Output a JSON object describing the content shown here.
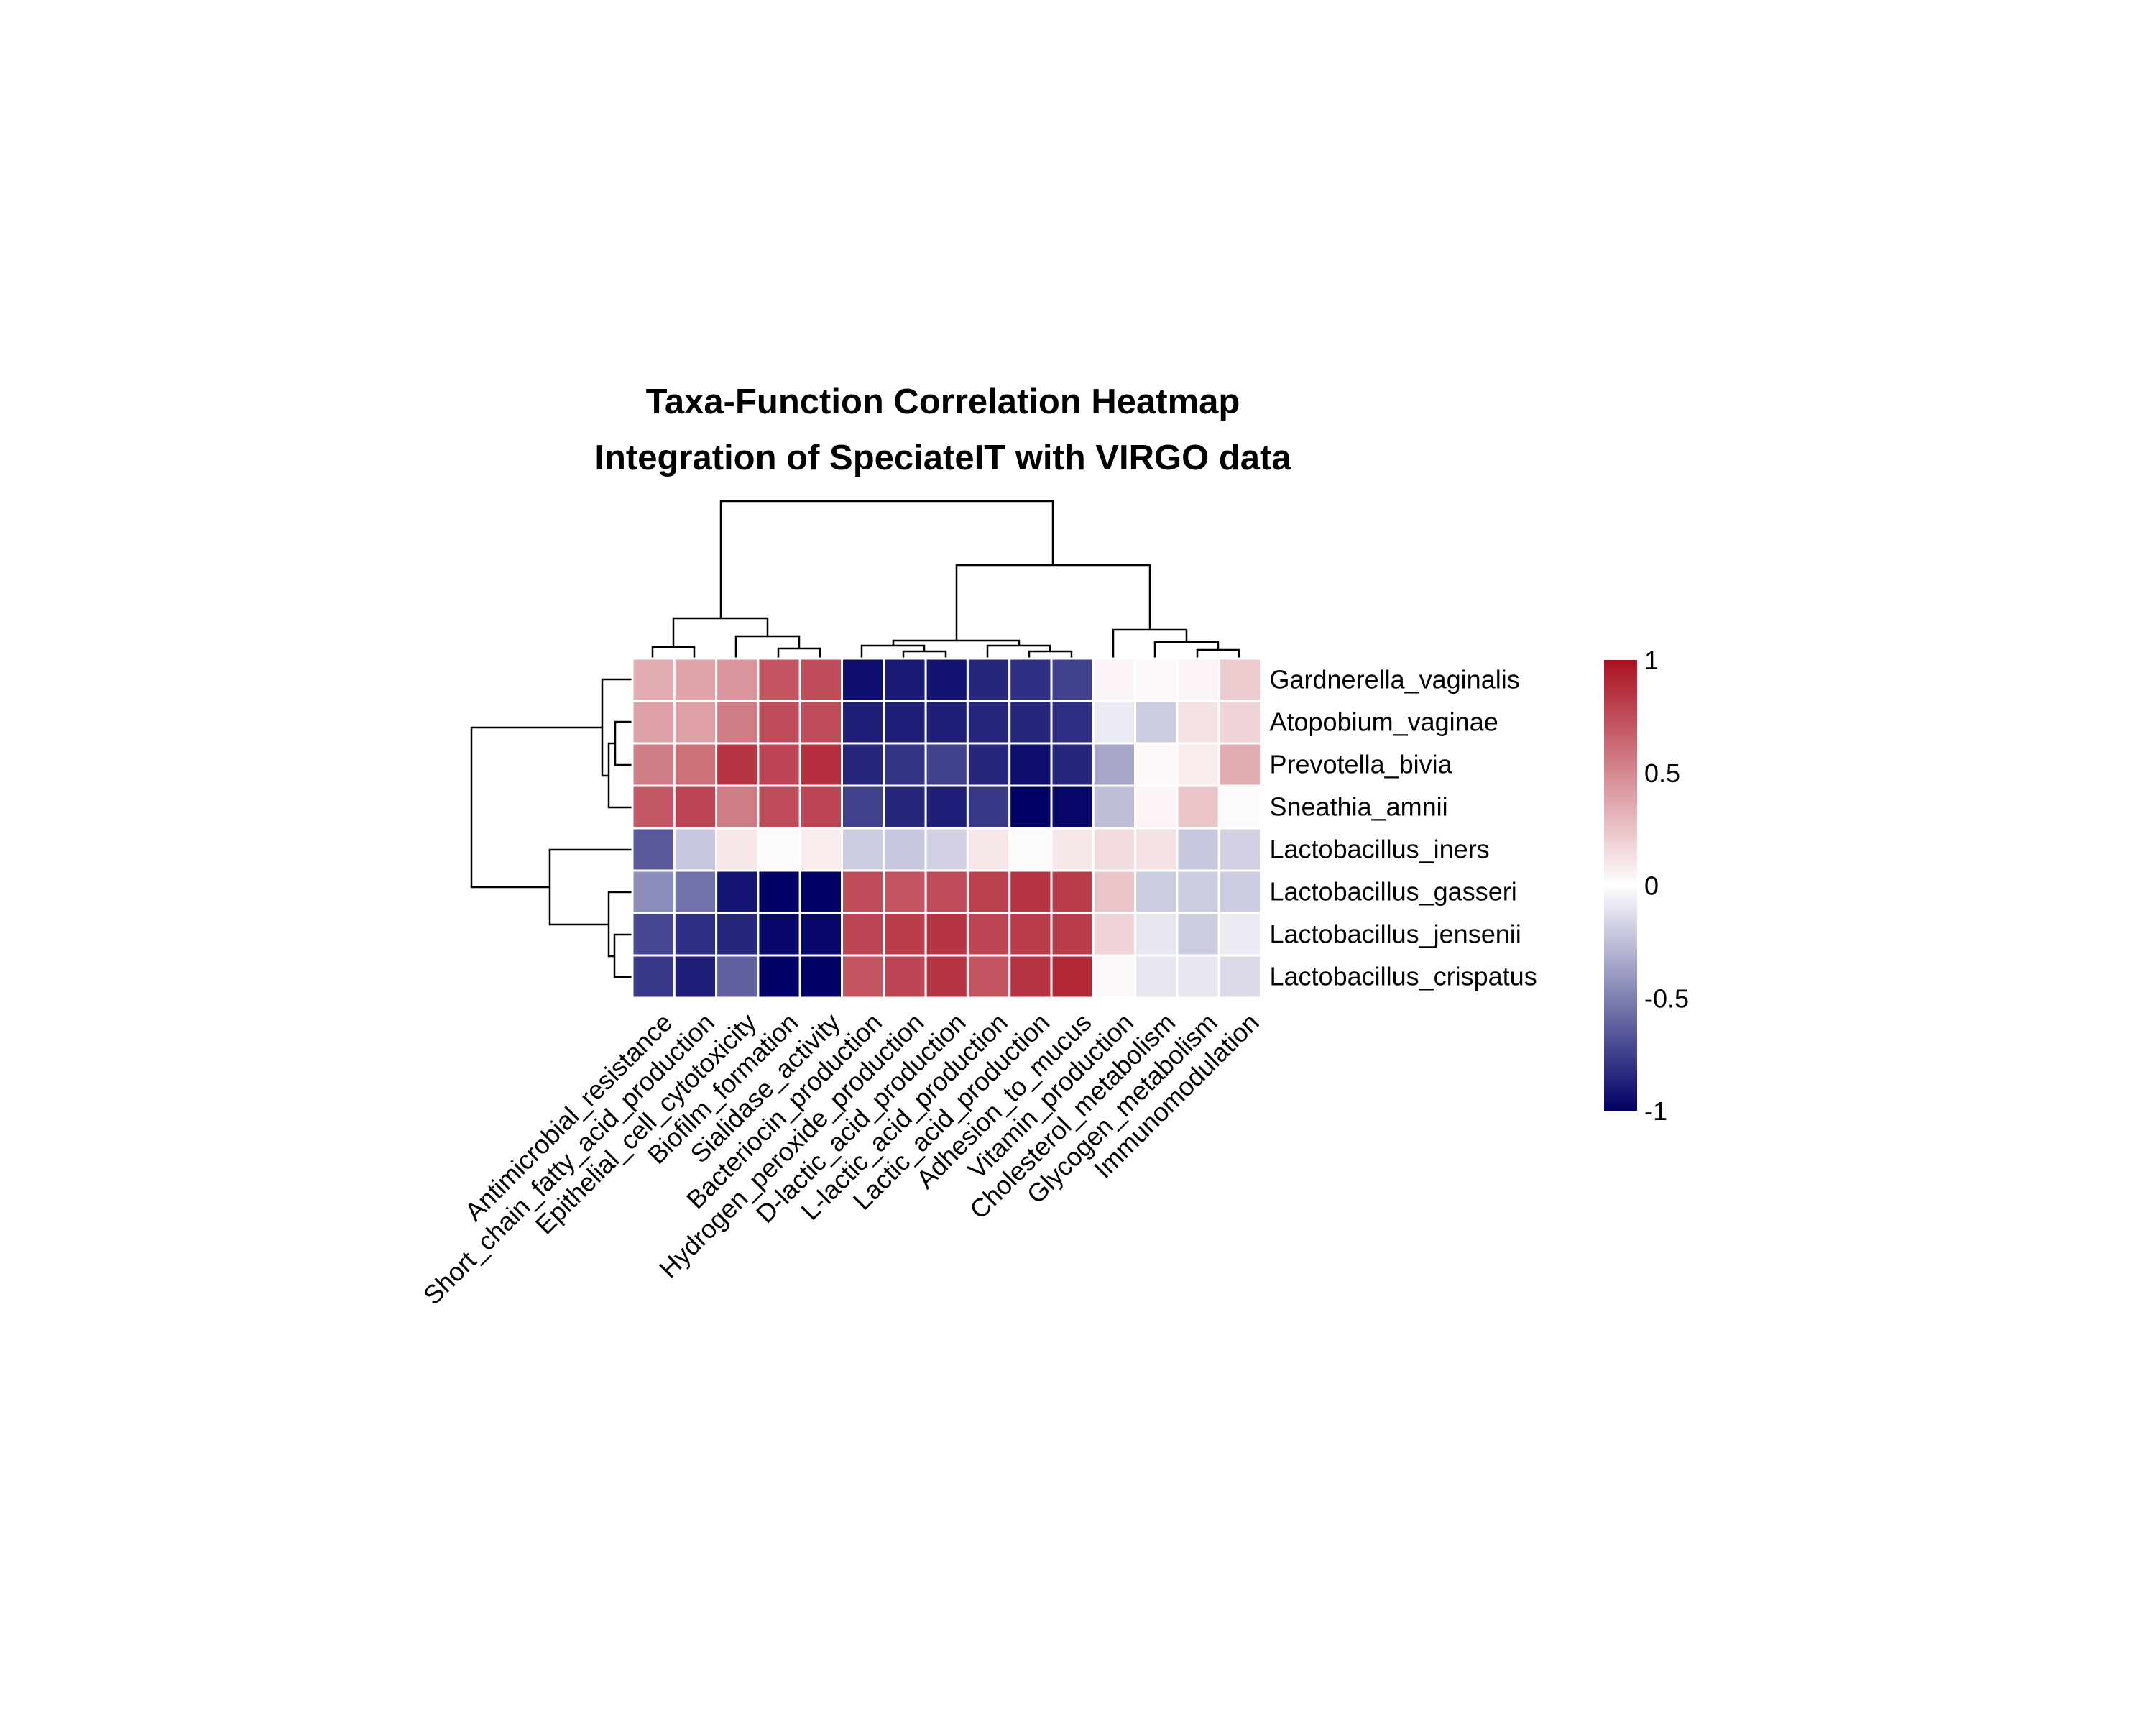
{
  "chart_data": {
    "type": "heatmap",
    "title": "Taxa-Function Correlation Heatmap",
    "subtitle": "Integration of SpeciateIT with VIRGO data",
    "rows": [
      "Gardnerella_vaginalis",
      "Atopobium_vaginae",
      "Prevotella_bivia",
      "Sneathia_amnii",
      "Lactobacillus_iners",
      "Lactobacillus_gasseri",
      "Lactobacillus_jensenii",
      "Lactobacillus_crispatus"
    ],
    "columns": [
      "Antimicrobial_resistance",
      "Short_chain_fatty_acid_production",
      "Epithelial_cell_cytotoxicity",
      "Biofilm_formation",
      "Sialidase_activity",
      "Bacteriocin_production",
      "Hydrogen_peroxide_production",
      "D-lactic_acid_production",
      "L-lactic_acid_production",
      "Lactic_acid_production",
      "Adhesion_to_mucus",
      "Vitamin_production",
      "Cholesterol_metabolism",
      "Glycogen_metabolism",
      "Immunomodulation"
    ],
    "values": [
      [
        0.35,
        0.38,
        0.45,
        0.72,
        0.75,
        -0.95,
        -0.9,
        -0.93,
        -0.85,
        -0.82,
        -0.75,
        0.05,
        0.03,
        0.05,
        0.22
      ],
      [
        0.4,
        0.4,
        0.55,
        0.75,
        0.75,
        -0.88,
        -0.88,
        -0.88,
        -0.85,
        -0.85,
        -0.82,
        -0.08,
        -0.2,
        0.12,
        0.18
      ],
      [
        0.55,
        0.6,
        0.85,
        0.78,
        0.88,
        -0.85,
        -0.8,
        -0.75,
        -0.85,
        -0.95,
        -0.85,
        -0.35,
        0.03,
        0.08,
        0.35
      ],
      [
        0.7,
        0.78,
        0.55,
        0.75,
        0.78,
        -0.75,
        -0.85,
        -0.88,
        -0.78,
        -1.0,
        -0.97,
        -0.25,
        0.05,
        0.25,
        0.02
      ],
      [
        -0.65,
        -0.22,
        0.1,
        0.02,
        0.08,
        -0.2,
        -0.22,
        -0.18,
        0.1,
        0.02,
        0.1,
        0.15,
        0.12,
        -0.22,
        -0.18
      ],
      [
        -0.45,
        -0.55,
        -0.92,
        -1.0,
        -1.0,
        0.75,
        0.72,
        0.75,
        0.8,
        0.85,
        0.82,
        0.25,
        -0.2,
        -0.2,
        -0.2
      ],
      [
        -0.72,
        -0.82,
        -0.85,
        -0.97,
        -0.97,
        0.78,
        0.82,
        0.85,
        0.78,
        0.82,
        0.82,
        0.18,
        -0.1,
        -0.2,
        -0.08
      ],
      [
        -0.78,
        -0.88,
        -0.62,
        -1.0,
        -1.0,
        0.72,
        0.78,
        0.85,
        0.72,
        0.85,
        0.9,
        0.03,
        -0.1,
        -0.1,
        -0.15
      ]
    ],
    "color_scale": {
      "low": "#000066",
      "mid": "#ffffff",
      "high": "#aa1122",
      "min": -1,
      "max": 1
    },
    "legend": {
      "position": "right",
      "ticks": [
        "1",
        "0.5",
        "0",
        "-0.5",
        "-1"
      ],
      "tick_values": [
        1,
        0.5,
        0,
        -0.5,
        -1
      ]
    },
    "row_dendrogram": true,
    "column_dendrogram": true,
    "grid": false
  }
}
